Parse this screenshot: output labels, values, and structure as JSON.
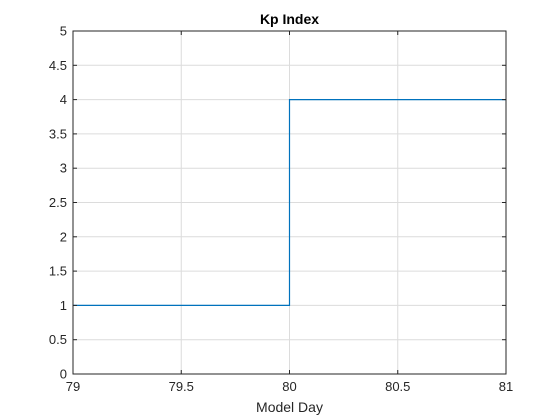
{
  "chart_data": {
    "type": "line",
    "title": "Kp Index",
    "xlabel": "Model Day",
    "ylabel": "",
    "xlim": [
      79,
      81
    ],
    "ylim": [
      0,
      5
    ],
    "xticks": [
      79,
      79.5,
      80,
      80.5,
      81
    ],
    "yticks": [
      0,
      0.5,
      1,
      1.5,
      2,
      2.5,
      3,
      3.5,
      4,
      4.5,
      5
    ],
    "xtick_labels": [
      "79",
      "79.5",
      "80",
      "80.5",
      "81"
    ],
    "ytick_labels": [
      "0",
      "0.5",
      "1",
      "1.5",
      "2",
      "2.5",
      "3",
      "3.5",
      "4",
      "4.5",
      "5"
    ],
    "grid": true,
    "series": [
      {
        "style": "step",
        "color": "#0072bd",
        "x": [
          79,
          80,
          80,
          81
        ],
        "y": [
          1,
          1,
          4,
          4
        ]
      }
    ]
  }
}
